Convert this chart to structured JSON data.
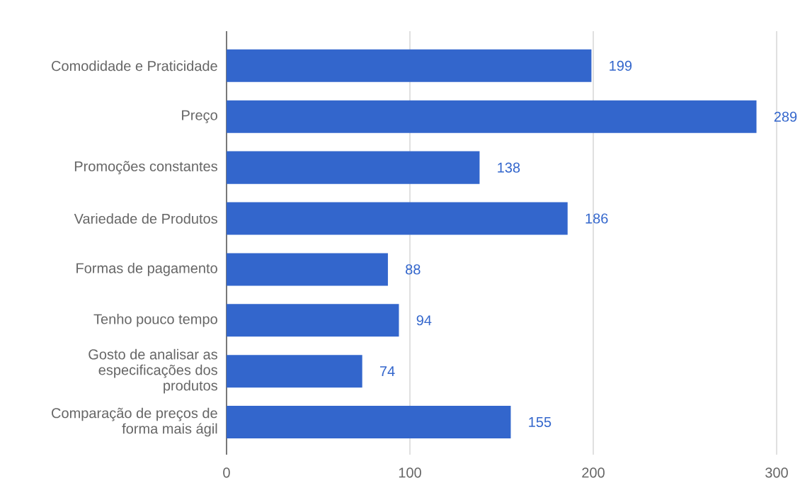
{
  "chart_data": {
    "type": "bar",
    "orientation": "horizontal",
    "categories": [
      "Comodidade e Praticidade",
      "Preço",
      "Promoções constantes",
      "Variedade de Produtos",
      "Formas de pagamento",
      "Tenho pouco tempo",
      "Gosto de analisar as especificações dos produtos",
      "Comparação de preços de forma mais ágil"
    ],
    "values": [
      199,
      289,
      138,
      186,
      88,
      94,
      74,
      155
    ],
    "color": "#3366cc",
    "xlim": [
      0,
      300
    ],
    "xticks": [
      0,
      100,
      200,
      300
    ],
    "grid": "x",
    "data_labels": true
  }
}
